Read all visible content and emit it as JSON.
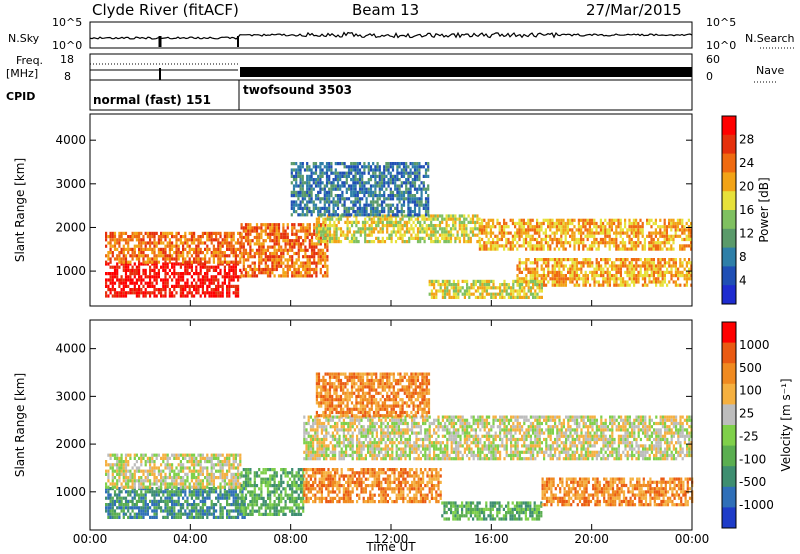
{
  "header": {
    "station": "Clyde River (fitACF)",
    "beam": "Beam 13",
    "date": "27/Mar/2015"
  },
  "top_panels": {
    "nsky_label": "N.Sky",
    "nsearch_label": "N.Search",
    "freq_label": "Freq.",
    "freq_unit": "[MHz]",
    "nave_label": "Nave",
    "cpid_label": "CPID",
    "nsky_ticks": [
      "10^5",
      "10^0"
    ],
    "nsearch_ticks": [
      "10^5",
      "10^0"
    ],
    "freq_ticks": [
      "18",
      "8"
    ],
    "nave_ticks": [
      "60",
      "0"
    ],
    "cpid_modes": [
      {
        "label": "normal (fast) 151",
        "start_hour": 0,
        "end_hour": 6
      },
      {
        "label": "twofsound 3503",
        "start_hour": 6,
        "end_hour": 24
      }
    ]
  },
  "chart_data": [
    {
      "type": "heatmap",
      "name": "power",
      "ylabel": "Slant Range [km]",
      "xlabel": "",
      "xlim": [
        0,
        24
      ],
      "ylim": [
        200,
        4600
      ],
      "yticks": [
        "1000",
        "2000",
        "3000",
        "4000"
      ],
      "colorbar_label": "Power [dB]",
      "colorbar_ticks": [
        "4",
        "8",
        "12",
        "16",
        "20",
        "24",
        "28"
      ],
      "colorbar_colors": [
        "#1e2cd0",
        "#1f4fb5",
        "#2e7fa8",
        "#5a9a6a",
        "#7fc060",
        "#e7e13a",
        "#f2a316",
        "#ef6a10",
        "#e5300c",
        "#ff0000"
      ],
      "bands": [
        {
          "x0": 0.6,
          "x1": 6.0,
          "y0": 450,
          "y1": 1200,
          "level": 9
        },
        {
          "x0": 0.6,
          "x1": 6.0,
          "y0": 1200,
          "y1": 1900,
          "level": 7
        },
        {
          "x0": 6.0,
          "x1": 9.5,
          "y0": 900,
          "y1": 2100,
          "level": 7
        },
        {
          "x0": 9.0,
          "x1": 15.5,
          "y0": 1700,
          "y1": 2300,
          "level": 5
        },
        {
          "x0": 15.5,
          "x1": 24.0,
          "y0": 1500,
          "y1": 2200,
          "level": 6
        },
        {
          "x0": 17.0,
          "x1": 24.0,
          "y0": 700,
          "y1": 1300,
          "level": 6
        },
        {
          "x0": 13.5,
          "x1": 18.0,
          "y0": 400,
          "y1": 800,
          "level": 5
        },
        {
          "x0": 8.0,
          "x1": 13.5,
          "y0": 2300,
          "y1": 3500,
          "level": 2
        }
      ]
    },
    {
      "type": "heatmap",
      "name": "velocity",
      "ylabel": "Slant Range [km]",
      "xlabel": "Time UT",
      "xlim": [
        0,
        24
      ],
      "ylim": [
        200,
        4600
      ],
      "yticks": [
        "1000",
        "2000",
        "3000",
        "4000"
      ],
      "xticks": [
        "00:00",
        "04:00",
        "08:00",
        "12:00",
        "16:00",
        "20:00",
        "00:00"
      ],
      "colorbar_label": "Velocity [m s⁻¹]",
      "colorbar_ticks": [
        "1000",
        "500",
        "100",
        "25",
        "-25",
        "-100",
        "-500",
        "-1000"
      ],
      "colorbar_colors": [
        "#1e3cc8",
        "#2f6fb8",
        "#3e8e70",
        "#5aae50",
        "#7fd04a",
        "#bdbdbd",
        "#f5b040",
        "#f08a20",
        "#ea5a12",
        "#ff0000"
      ],
      "bands": [
        {
          "x0": 0.6,
          "x1": 6.2,
          "y0": 450,
          "y1": 1100,
          "level": 2
        },
        {
          "x0": 0.6,
          "x1": 6.0,
          "y0": 1100,
          "y1": 1800,
          "level": 5
        },
        {
          "x0": 6.0,
          "x1": 8.5,
          "y0": 500,
          "y1": 1500,
          "level": 3
        },
        {
          "x0": 8.5,
          "x1": 24.0,
          "y0": 1700,
          "y1": 2600,
          "level": 5
        },
        {
          "x0": 8.5,
          "x1": 14.0,
          "y0": 800,
          "y1": 1500,
          "level": 7
        },
        {
          "x0": 14.0,
          "x1": 18.0,
          "y0": 400,
          "y1": 800,
          "level": 3
        },
        {
          "x0": 18.0,
          "x1": 24.0,
          "y0": 700,
          "y1": 1300,
          "level": 7
        },
        {
          "x0": 9.0,
          "x1": 13.5,
          "y0": 2600,
          "y1": 3500,
          "level": 7
        }
      ]
    }
  ]
}
